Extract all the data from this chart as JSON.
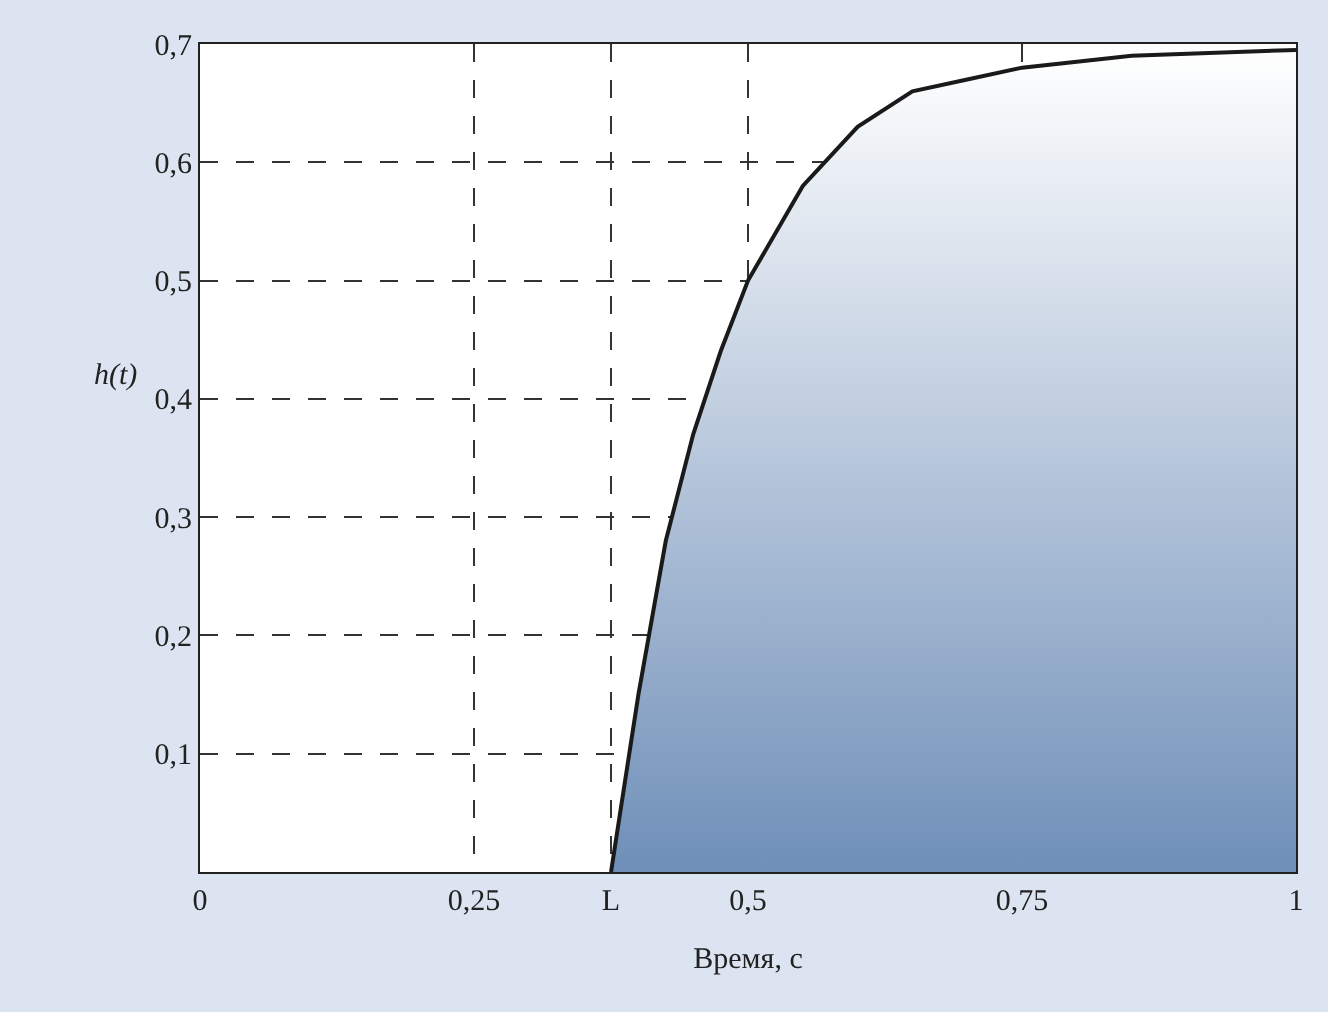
{
  "chart_data": {
    "type": "area",
    "xlabel": "Время, с",
    "ylabel": "h(t)",
    "x": [
      0.375,
      0.4,
      0.425,
      0.45,
      0.475,
      0.5,
      0.55,
      0.6,
      0.65,
      0.7,
      0.75,
      0.85,
      1
    ],
    "series": [
      {
        "color": "#1a1a1a",
        "values": [
          0,
          0.15,
          0.28,
          0.37,
          0.44,
          0.5,
          0.58,
          0.63,
          0.66,
          0.67,
          0.68,
          0.69,
          0.695
        ]
      }
    ],
    "xlim": [
      0,
      1
    ],
    "ylim": [
      0,
      0.7
    ],
    "xticks": [
      0,
      {
        "value": 0.25,
        "label": "0,25"
      },
      {
        "value": 0.375,
        "label": "L"
      },
      {
        "value": 0.5,
        "label": "0,5"
      },
      {
        "value": 0.75,
        "label": "0,75"
      },
      1
    ],
    "yticks": [
      {
        "value": 0.1,
        "label": "0,1"
      },
      {
        "value": 0.2,
        "label": "0,2"
      },
      {
        "value": 0.3,
        "label": "0,3"
      },
      {
        "value": 0.4,
        "label": "0,4"
      },
      {
        "value": 0.5,
        "label": "0,5"
      },
      {
        "value": 0.6,
        "label": "0,6"
      },
      {
        "value": 0.7,
        "label": "0,7"
      }
    ],
    "grid": true,
    "line_style": "solid"
  }
}
